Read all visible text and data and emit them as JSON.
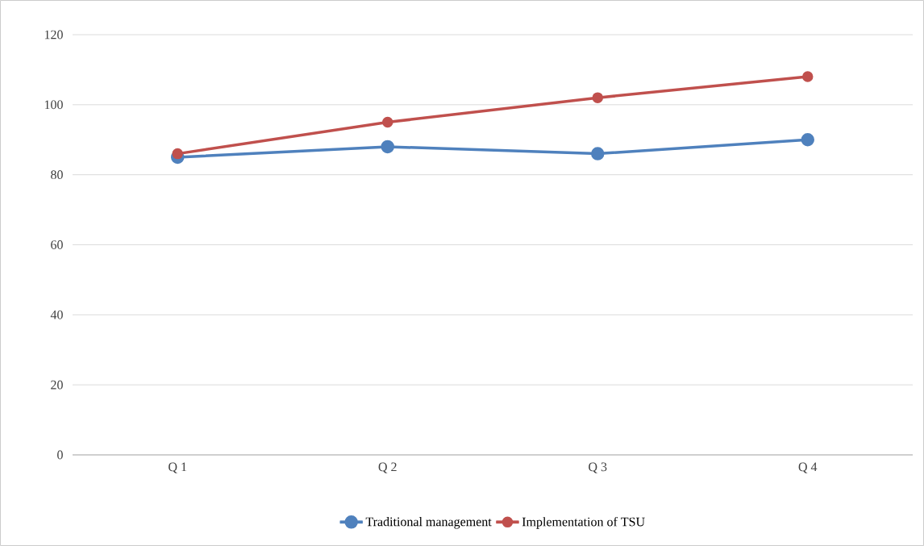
{
  "chart_data": {
    "type": "line",
    "categories": [
      "Q 1",
      "Q 2",
      "Q 3",
      "Q 4"
    ],
    "series": [
      {
        "name": "Traditional management",
        "color": "#4f81bd",
        "values": [
          85,
          88,
          86,
          90
        ]
      },
      {
        "name": "Implementation of TSU",
        "color": "#c0504d",
        "values": [
          86,
          95,
          102,
          108
        ]
      }
    ],
    "ylim": [
      0,
      120
    ],
    "yticks": [
      0,
      20,
      40,
      60,
      80,
      100,
      120
    ],
    "grid": "y",
    "legend": "bottom",
    "marker": "circle",
    "line_style": "solid"
  }
}
